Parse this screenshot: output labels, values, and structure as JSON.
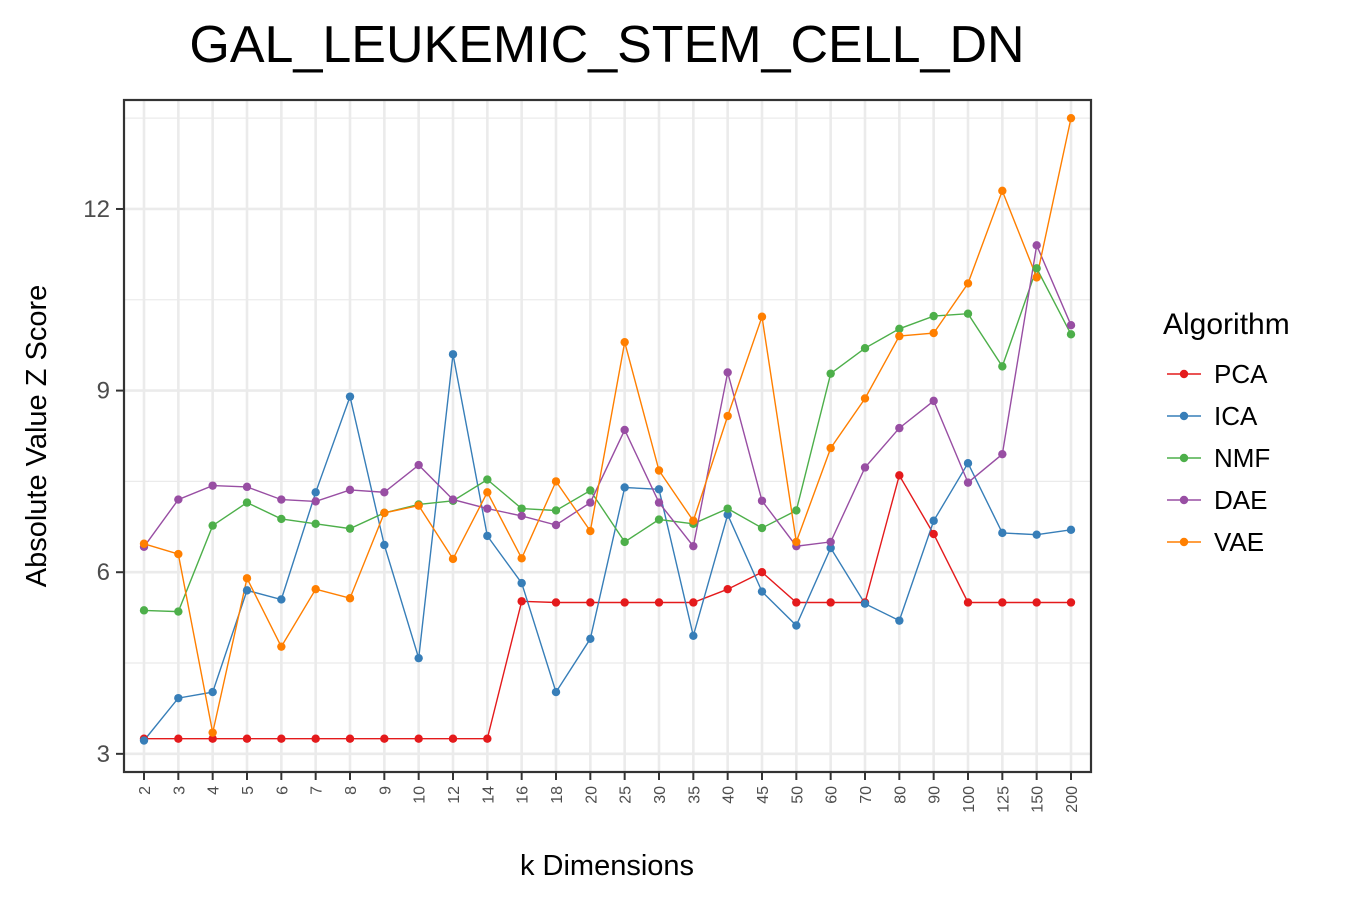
{
  "chart_data": {
    "type": "line",
    "title": "GAL_LEUKEMIC_STEM_CELL_DN",
    "xlabel": "k Dimensions",
    "ylabel": "Absolute Value Z Score",
    "categories": [
      "2",
      "3",
      "4",
      "5",
      "6",
      "7",
      "8",
      "9",
      "10",
      "12",
      "14",
      "16",
      "18",
      "20",
      "25",
      "30",
      "35",
      "40",
      "45",
      "50",
      "60",
      "70",
      "80",
      "90",
      "100",
      "125",
      "150",
      "200"
    ],
    "ylim": [
      2.7,
      13.8
    ],
    "yticks": [
      3,
      6,
      9,
      12
    ],
    "grid": true,
    "legend_title": "Algorithm",
    "legend_position": "right",
    "series": [
      {
        "name": "PCA",
        "color": "#e41a1c",
        "values": [
          3.25,
          3.25,
          3.25,
          3.25,
          3.25,
          3.25,
          3.25,
          3.25,
          3.25,
          3.25,
          3.25,
          5.52,
          5.5,
          5.5,
          5.5,
          5.5,
          5.5,
          5.72,
          6.0,
          5.5,
          5.5,
          5.5,
          7.6,
          6.63,
          5.5,
          5.5,
          5.5,
          5.5
        ]
      },
      {
        "name": "ICA",
        "color": "#377eb8",
        "values": [
          3.22,
          3.92,
          4.02,
          5.7,
          5.55,
          7.32,
          8.9,
          6.45,
          4.58,
          9.6,
          6.6,
          5.82,
          4.02,
          4.9,
          7.4,
          7.37,
          4.95,
          6.95,
          5.68,
          5.12,
          6.4,
          5.48,
          5.2,
          6.85,
          7.8,
          6.65,
          6.62,
          6.7
        ]
      },
      {
        "name": "NMF",
        "color": "#4daf4a",
        "values": [
          5.37,
          5.35,
          6.77,
          7.15,
          6.88,
          6.8,
          6.72,
          6.98,
          7.12,
          7.18,
          7.53,
          7.05,
          7.02,
          7.35,
          6.5,
          6.87,
          6.8,
          7.05,
          6.73,
          7.02,
          9.28,
          9.7,
          10.02,
          10.23,
          10.27,
          9.4,
          11.02,
          9.93
        ]
      },
      {
        "name": "DAE",
        "color": "#984ea3",
        "values": [
          6.42,
          7.2,
          7.43,
          7.41,
          7.2,
          7.17,
          7.36,
          7.32,
          7.77,
          7.2,
          7.05,
          6.93,
          6.78,
          7.15,
          8.35,
          7.15,
          6.43,
          9.3,
          7.18,
          6.43,
          6.5,
          7.73,
          8.38,
          8.83,
          7.48,
          7.95,
          11.4,
          10.08
        ]
      },
      {
        "name": "VAE",
        "color": "#ff7f00",
        "values": [
          6.47,
          6.3,
          3.35,
          5.9,
          4.77,
          5.72,
          5.57,
          6.98,
          7.1,
          6.22,
          7.32,
          6.23,
          7.5,
          6.68,
          9.8,
          7.68,
          6.85,
          8.58,
          10.22,
          6.5,
          8.05,
          8.87,
          9.9,
          9.95,
          10.77,
          12.3,
          10.87,
          13.5
        ]
      }
    ]
  }
}
